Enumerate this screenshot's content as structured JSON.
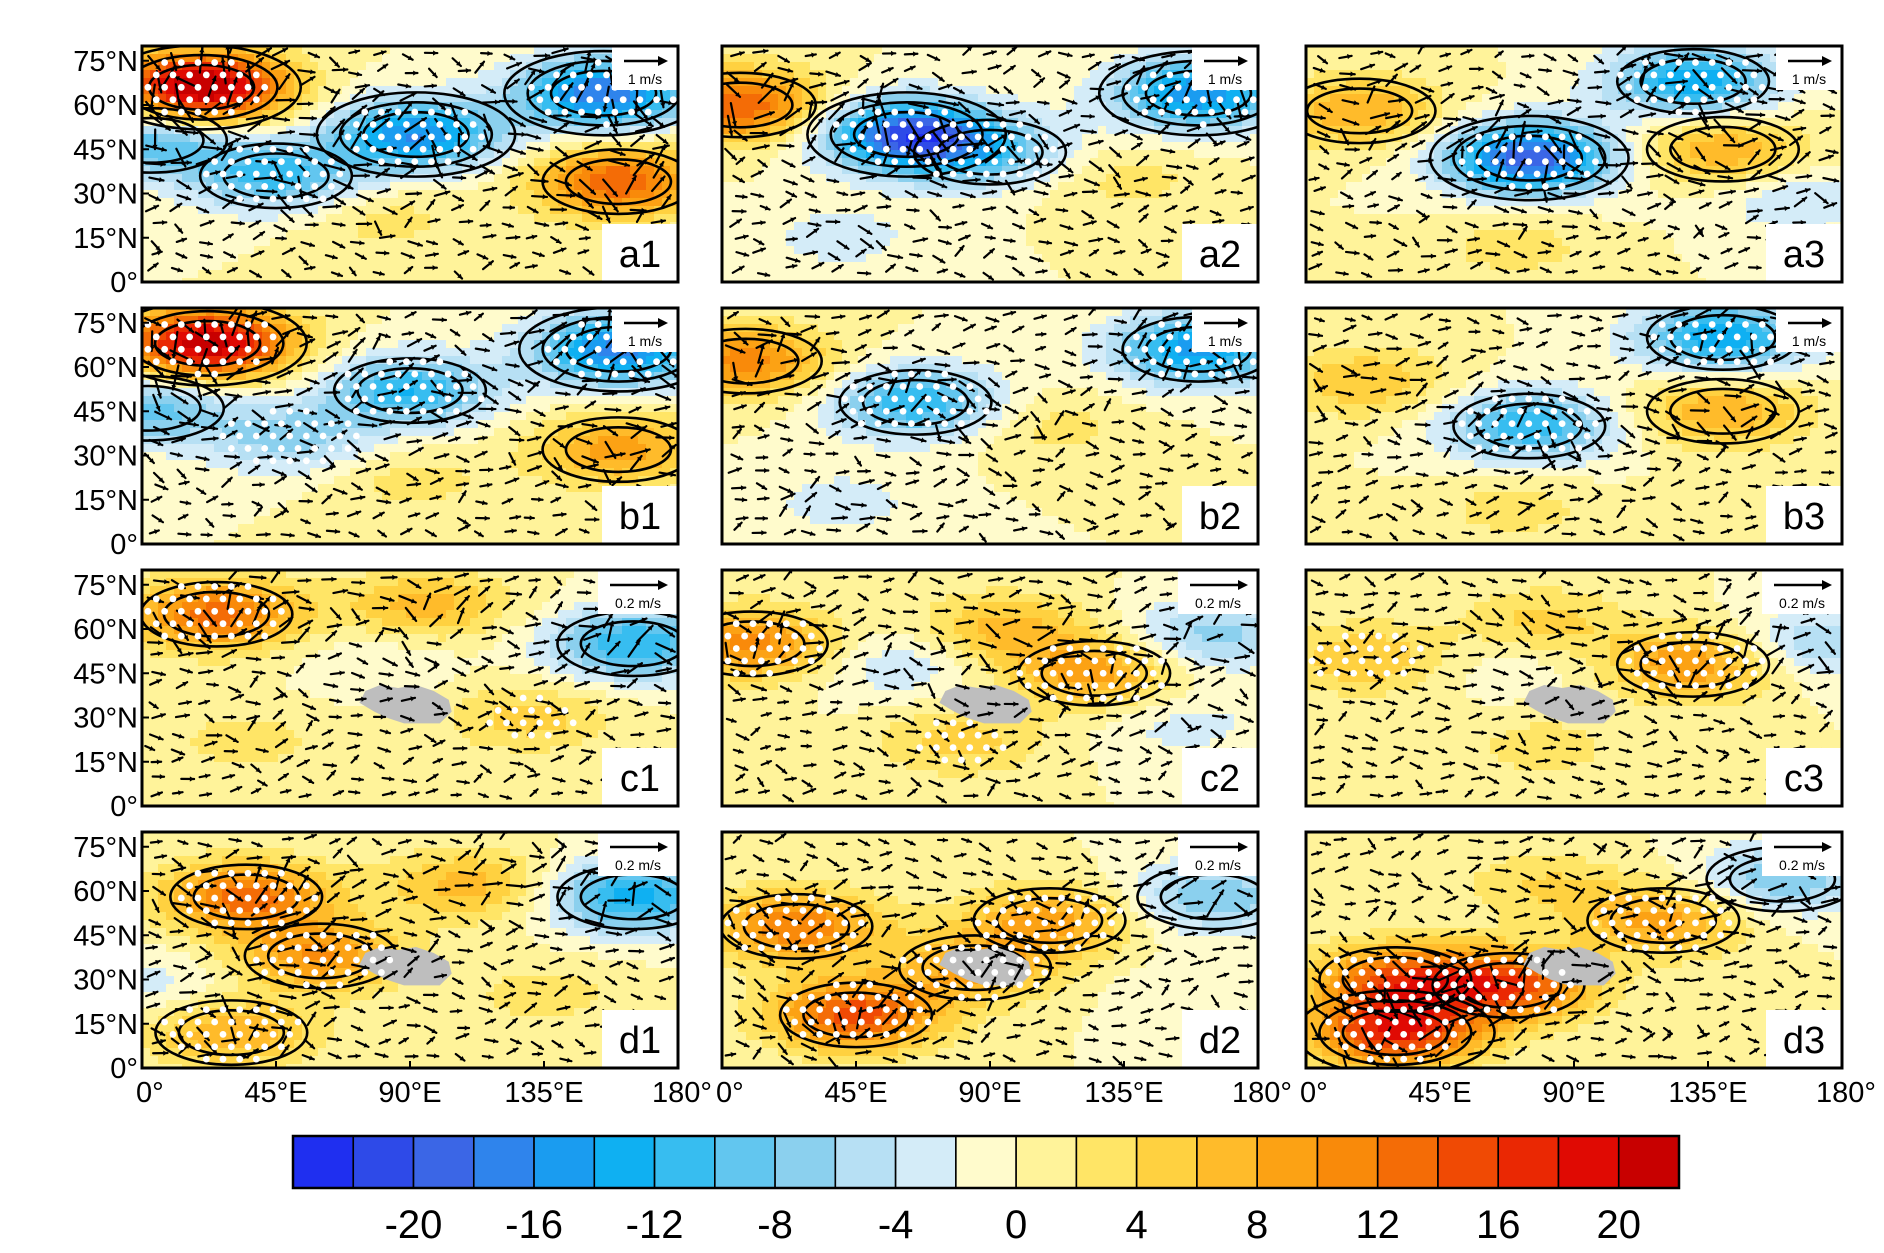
{
  "chart_data": {
    "type": "heatmap",
    "description_layout": "4 rows x 3 columns of map panels sharing longitude and latitude axes; shaded anomaly fields with wind vectors, contours and white significance stipples",
    "x_ticks": [
      "0°",
      "45°E",
      "90°E",
      "135°E",
      "180°"
    ],
    "x_tick_values": [
      0,
      45,
      90,
      135,
      180
    ],
    "y_ticks": [
      "75°N",
      "60°N",
      "45°N",
      "30°N",
      "15°N",
      "0°"
    ],
    "y_tick_values": [
      75,
      60,
      45,
      30,
      15,
      0
    ],
    "xlim": [
      0,
      180
    ],
    "ylim": [
      0,
      80
    ],
    "tibetan_plateau_mask_color": "#bebebe",
    "panels": [
      {
        "label": "a1",
        "row": 0,
        "col": 0,
        "ref_vector": "1 m/s",
        "tp_mask": false,
        "features": [
          {
            "lon": 20,
            "lat": 66,
            "amp": 24,
            "sig": true
          },
          {
            "lon": 92,
            "lat": 50,
            "amp": -16,
            "sig": true
          },
          {
            "lon": 45,
            "lat": 36,
            "amp": -11,
            "sig": true
          },
          {
            "lon": 155,
            "lat": 64,
            "amp": -18,
            "sig": true
          },
          {
            "lon": 160,
            "lat": 34,
            "amp": 14,
            "sig": false
          },
          {
            "lon": 3,
            "lat": 48,
            "amp": -10,
            "sig": false
          },
          {
            "lon": 80,
            "lat": 22,
            "amp": 3,
            "sig": false
          }
        ]
      },
      {
        "label": "a2",
        "row": 0,
        "col": 1,
        "ref_vector": "1 m/s",
        "tp_mask": false,
        "features": [
          {
            "lon": 6,
            "lat": 60,
            "amp": 14,
            "sig": false
          },
          {
            "lon": 62,
            "lat": 50,
            "amp": -20,
            "sig": true
          },
          {
            "lon": 90,
            "lat": 44,
            "amp": -8,
            "sig": true
          },
          {
            "lon": 160,
            "lat": 64,
            "amp": -16,
            "sig": true
          },
          {
            "lon": 135,
            "lat": 35,
            "amp": 3,
            "sig": false
          },
          {
            "lon": 40,
            "lat": 15,
            "amp": -3,
            "sig": false
          }
        ]
      },
      {
        "label": "a3",
        "row": 0,
        "col": 2,
        "ref_vector": "1 m/s",
        "tp_mask": false,
        "features": [
          {
            "lon": 18,
            "lat": 58,
            "amp": 8,
            "sig": false
          },
          {
            "lon": 75,
            "lat": 42,
            "amp": -20,
            "sig": true
          },
          {
            "lon": 130,
            "lat": 68,
            "amp": -14,
            "sig": true
          },
          {
            "lon": 140,
            "lat": 45,
            "amp": 8,
            "sig": false
          },
          {
            "lon": 165,
            "lat": 28,
            "amp": -4,
            "sig": false
          },
          {
            "lon": 70,
            "lat": 12,
            "amp": 3,
            "sig": false
          }
        ]
      },
      {
        "label": "b1",
        "row": 1,
        "col": 0,
        "ref_vector": "1 m/s",
        "tp_mask": false,
        "features": [
          {
            "lon": 22,
            "lat": 68,
            "amp": 22,
            "sig": true
          },
          {
            "lon": 90,
            "lat": 52,
            "amp": -12,
            "sig": true
          },
          {
            "lon": 50,
            "lat": 36,
            "amp": -7,
            "sig": true
          },
          {
            "lon": 160,
            "lat": 66,
            "amp": -17,
            "sig": true
          },
          {
            "lon": 160,
            "lat": 32,
            "amp": 9,
            "sig": false
          },
          {
            "lon": 2,
            "lat": 46,
            "amp": -9,
            "sig": false
          },
          {
            "lon": 90,
            "lat": 22,
            "amp": 3,
            "sig": false
          }
        ]
      },
      {
        "label": "b2",
        "row": 1,
        "col": 1,
        "ref_vector": "1 m/s",
        "tp_mask": false,
        "features": [
          {
            "lon": 8,
            "lat": 62,
            "amp": 11,
            "sig": false
          },
          {
            "lon": 65,
            "lat": 48,
            "amp": -12,
            "sig": true
          },
          {
            "lon": 160,
            "lat": 66,
            "amp": -15,
            "sig": true
          },
          {
            "lon": 110,
            "lat": 40,
            "amp": 3,
            "sig": false
          },
          {
            "lon": 40,
            "lat": 14,
            "amp": -3,
            "sig": false
          }
        ]
      },
      {
        "label": "b3",
        "row": 1,
        "col": 2,
        "ref_vector": "1 m/s",
        "tp_mask": false,
        "features": [
          {
            "lon": 20,
            "lat": 55,
            "amp": 6,
            "sig": false
          },
          {
            "lon": 75,
            "lat": 40,
            "amp": -12,
            "sig": true
          },
          {
            "lon": 140,
            "lat": 70,
            "amp": -14,
            "sig": true
          },
          {
            "lon": 140,
            "lat": 45,
            "amp": 8,
            "sig": false
          },
          {
            "lon": 70,
            "lat": 12,
            "amp": 3,
            "sig": false
          }
        ]
      },
      {
        "label": "c1",
        "row": 2,
        "col": 0,
        "ref_vector": "0.2 m/s",
        "tp_mask": true,
        "features": [
          {
            "lon": 25,
            "lat": 65,
            "amp": 13,
            "sig": true
          },
          {
            "lon": 95,
            "lat": 68,
            "amp": 7,
            "sig": false
          },
          {
            "lon": 165,
            "lat": 55,
            "amp": -12,
            "sig": false
          },
          {
            "lon": 130,
            "lat": 30,
            "amp": 5,
            "sig": true
          },
          {
            "lon": 35,
            "lat": 22,
            "amp": 3,
            "sig": true
          },
          {
            "lon": 80,
            "lat": 50,
            "amp": -2,
            "sig": false
          }
        ]
      },
      {
        "label": "c2",
        "row": 2,
        "col": 1,
        "ref_vector": "0.2 m/s",
        "tp_mask": true,
        "features": [
          {
            "lon": 10,
            "lat": 55,
            "amp": 11,
            "sig": true
          },
          {
            "lon": 95,
            "lat": 60,
            "amp": 7,
            "sig": false
          },
          {
            "lon": 125,
            "lat": 45,
            "amp": 9,
            "sig": true
          },
          {
            "lon": 60,
            "lat": 48,
            "amp": -4,
            "sig": false
          },
          {
            "lon": 165,
            "lat": 58,
            "amp": -7,
            "sig": false
          },
          {
            "lon": 80,
            "lat": 22,
            "amp": 5,
            "sig": true
          },
          {
            "lon": 155,
            "lat": 28,
            "amp": -3,
            "sig": false
          }
        ]
      },
      {
        "label": "c3",
        "row": 2,
        "col": 2,
        "ref_vector": "0.2 m/s",
        "tp_mask": true,
        "features": [
          {
            "lon": 20,
            "lat": 50,
            "amp": 6,
            "sig": true
          },
          {
            "lon": 130,
            "lat": 48,
            "amp": 10,
            "sig": true
          },
          {
            "lon": 80,
            "lat": 62,
            "amp": 5,
            "sig": false
          },
          {
            "lon": 170,
            "lat": 55,
            "amp": -6,
            "sig": false
          },
          {
            "lon": 80,
            "lat": 20,
            "amp": 3,
            "sig": true
          },
          {
            "lon": 70,
            "lat": 48,
            "amp": -2,
            "sig": false
          }
        ]
      },
      {
        "label": "d1",
        "row": 3,
        "col": 0,
        "ref_vector": "0.2 m/s",
        "tp_mask": true,
        "features": [
          {
            "lon": 35,
            "lat": 58,
            "amp": 13,
            "sig": true
          },
          {
            "lon": 60,
            "lat": 38,
            "amp": 10,
            "sig": true
          },
          {
            "lon": 110,
            "lat": 62,
            "amp": 7,
            "sig": false
          },
          {
            "lon": 165,
            "lat": 58,
            "amp": -13,
            "sig": false
          },
          {
            "lon": 30,
            "lat": 12,
            "amp": 8,
            "sig": true
          },
          {
            "lon": 5,
            "lat": 28,
            "amp": -3,
            "sig": false
          },
          {
            "lon": 135,
            "lat": 25,
            "amp": 3,
            "sig": false
          }
        ]
      },
      {
        "label": "d2",
        "row": 3,
        "col": 1,
        "ref_vector": "0.2 m/s",
        "tp_mask": true,
        "features": [
          {
            "lon": 25,
            "lat": 48,
            "amp": 12,
            "sig": true
          },
          {
            "lon": 45,
            "lat": 18,
            "amp": 15,
            "sig": true
          },
          {
            "lon": 110,
            "lat": 50,
            "amp": 9,
            "sig": true
          },
          {
            "lon": 85,
            "lat": 34,
            "amp": 8,
            "sig": true
          },
          {
            "lon": 165,
            "lat": 58,
            "amp": -8,
            "sig": false
          },
          {
            "lon": 160,
            "lat": 25,
            "amp": -2,
            "sig": false
          }
        ]
      },
      {
        "label": "d3",
        "row": 3,
        "col": 2,
        "ref_vector": "0.2 m/s",
        "tp_mask": true,
        "features": [
          {
            "lon": 30,
            "lat": 30,
            "amp": 13,
            "sig": true
          },
          {
            "lon": 30,
            "lat": 12,
            "amp": 17,
            "sig": true
          },
          {
            "lon": 68,
            "lat": 28,
            "amp": 15,
            "sig": true
          },
          {
            "lon": 120,
            "lat": 50,
            "amp": 9,
            "sig": true
          },
          {
            "lon": 160,
            "lat": 64,
            "amp": -8,
            "sig": false
          },
          {
            "lon": 80,
            "lat": 62,
            "amp": 4,
            "sig": false
          }
        ]
      }
    ],
    "colorbar": {
      "boundaries": [
        -24,
        -22,
        -20,
        -18,
        -16,
        -14,
        -12,
        -10,
        -8,
        -6,
        -4,
        -2,
        0,
        2,
        4,
        6,
        8,
        10,
        12,
        14,
        16,
        18,
        20,
        22
      ],
      "colors": [
        "#1f2ff0",
        "#2e4ae8",
        "#3b66e6",
        "#2f84ec",
        "#1a9cf0",
        "#0fb0f2",
        "#37bdf0",
        "#62c6ef",
        "#8bd0ee",
        "#b7e0f4",
        "#d4ecf8",
        "#fffbcc",
        "#fff39a",
        "#ffe566",
        "#ffd140",
        "#ffbb2a",
        "#fca214",
        "#f98a0a",
        "#f46c06",
        "#f04a04",
        "#ea2803",
        "#e00a03",
        "#c80000"
      ],
      "tick_labels": [
        "-20",
        "-16",
        "-12",
        "-8",
        "-4",
        "0",
        "4",
        "8",
        "12",
        "16",
        "20"
      ],
      "tick_values": [
        -20,
        -16,
        -12,
        -8,
        -4,
        0,
        4,
        8,
        12,
        16,
        20
      ]
    }
  }
}
